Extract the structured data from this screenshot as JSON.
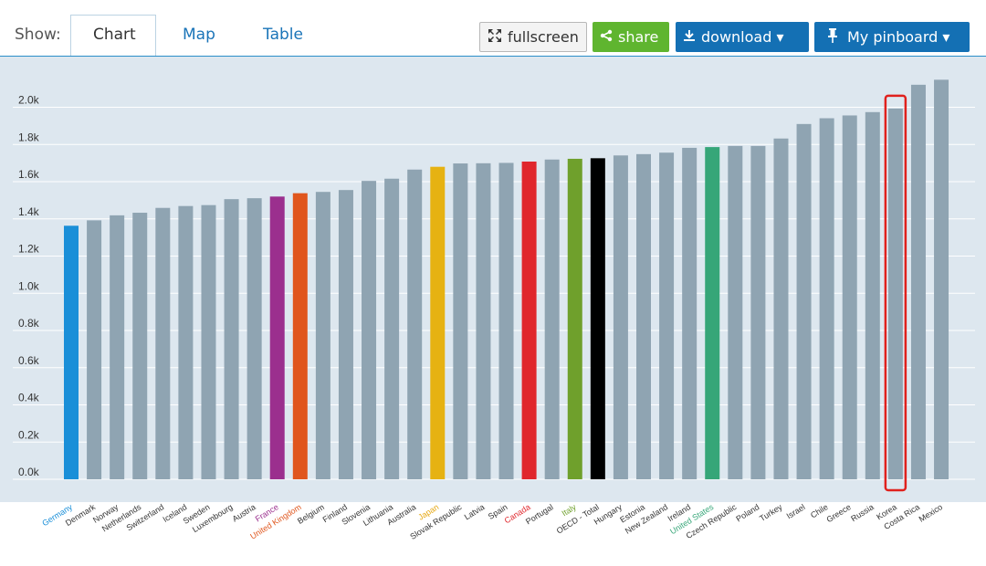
{
  "toolbar": {
    "show_label": "Show:",
    "tabs": [
      {
        "label": "Chart",
        "active": true
      },
      {
        "label": "Map",
        "active": false
      },
      {
        "label": "Table",
        "active": false
      }
    ],
    "fullscreen_label": "fullscreen",
    "share_label": "share",
    "download_label": "download ▾",
    "pinboard_label": "My pinboard ▾",
    "icons": {
      "fullscreen": "expand-arrows-icon",
      "share": "share-icon",
      "download": "download-icon",
      "pinboard": "pin-icon"
    }
  },
  "colors": {
    "default_bar": "#8fa4b2",
    "background": "#dde7ef",
    "highlight_box": "#e0211d",
    "accent": "#1470b4",
    "share": "#5fb52f"
  },
  "chart_data": {
    "type": "bar",
    "ylim": [
      0,
      2200
    ],
    "yticks": [
      0,
      200,
      400,
      600,
      800,
      1000,
      1200,
      1400,
      1600,
      1800,
      2000
    ],
    "ytick_labels": [
      "0.0k",
      "0.2k",
      "0.4k",
      "0.6k",
      "0.8k",
      "1.0k",
      "1.2k",
      "1.4k",
      "1.6k",
      "1.8k",
      "2.0k"
    ],
    "grid": true,
    "categories": [
      "Germany",
      "Denmark",
      "Norway",
      "Netherlands",
      "Switzerland",
      "Iceland",
      "Sweden",
      "Luxembourg",
      "Austria",
      "France",
      "United Kingdom",
      "Belgium",
      "Finland",
      "Slovenia",
      "Lithuania",
      "Australia",
      "Japan",
      "Slovak Republic",
      "Latvia",
      "Spain",
      "Canada",
      "Portugal",
      "Italy",
      "OECD - Total",
      "Hungary",
      "Estonia",
      "New Zealand",
      "Ireland",
      "United States",
      "Czech Republic",
      "Poland",
      "Turkey",
      "Israel",
      "Chile",
      "Greece",
      "Russia",
      "Korea",
      "Costa Rica",
      "Mexico"
    ],
    "values": [
      1363,
      1392,
      1419,
      1433,
      1459,
      1469,
      1474,
      1506,
      1511,
      1520,
      1538,
      1545,
      1555,
      1604,
      1616,
      1665,
      1680,
      1698,
      1699,
      1701,
      1708,
      1719,
      1723,
      1726,
      1741,
      1748,
      1756,
      1782,
      1786,
      1792,
      1792,
      1832,
      1910,
      1941,
      1956,
      1974,
      1993,
      2121,
      2148
    ],
    "bar_colors": [
      "#1a8fd8",
      "#8fa4b2",
      "#8fa4b2",
      "#8fa4b2",
      "#8fa4b2",
      "#8fa4b2",
      "#8fa4b2",
      "#8fa4b2",
      "#8fa4b2",
      "#9b2f8e",
      "#e0561d",
      "#8fa4b2",
      "#8fa4b2",
      "#8fa4b2",
      "#8fa4b2",
      "#8fa4b2",
      "#e6b212",
      "#8fa4b2",
      "#8fa4b2",
      "#8fa4b2",
      "#e0272d",
      "#8fa4b2",
      "#6fa02c",
      "#000000",
      "#8fa4b2",
      "#8fa4b2",
      "#8fa4b2",
      "#8fa4b2",
      "#36a678",
      "#8fa4b2",
      "#8fa4b2",
      "#8fa4b2",
      "#8fa4b2",
      "#8fa4b2",
      "#8fa4b2",
      "#8fa4b2",
      "#8fa4b2",
      "#8fa4b2",
      "#8fa4b2"
    ],
    "label_colors": [
      "#1a8fd8",
      "#333333",
      "#333333",
      "#333333",
      "#333333",
      "#333333",
      "#333333",
      "#333333",
      "#333333",
      "#9b2f8e",
      "#e0561d",
      "#333333",
      "#333333",
      "#333333",
      "#333333",
      "#333333",
      "#e6a812",
      "#333333",
      "#333333",
      "#333333",
      "#e0272d",
      "#333333",
      "#6fa02c",
      "#333333",
      "#333333",
      "#333333",
      "#333333",
      "#333333",
      "#36a678",
      "#333333",
      "#333333",
      "#333333",
      "#333333",
      "#333333",
      "#333333",
      "#333333",
      "#333333",
      "#333333",
      "#333333"
    ],
    "highlighted_category": "Korea"
  }
}
